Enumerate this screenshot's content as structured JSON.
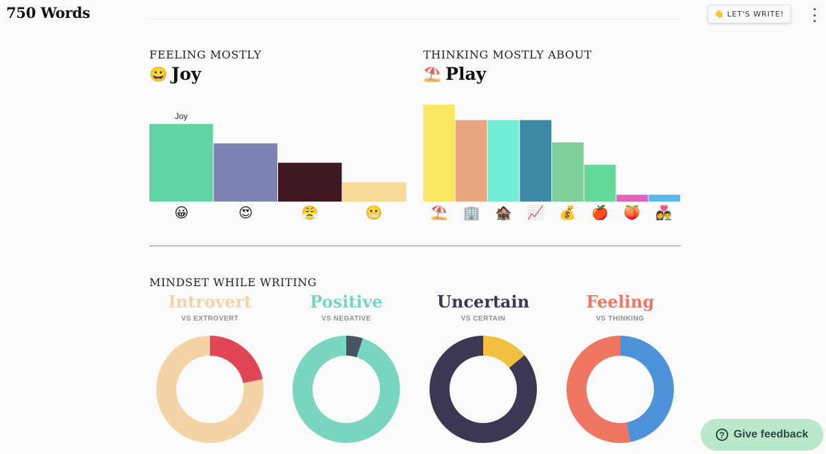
{
  "app": {
    "title": "750 Words"
  },
  "header": {
    "write_button": {
      "icon": "waving-hand-icon",
      "emoji": "👋",
      "label": "LET'S WRITE!"
    },
    "menu_icon": "kebab-menu-icon"
  },
  "feeling": {
    "label": "FEELING MOSTLY",
    "value": "Joy",
    "value_emoji": "😀"
  },
  "thinking": {
    "label": "THINKING MOSTLY ABOUT",
    "value": "Play",
    "value_emoji": "⛱️"
  },
  "chart_data": [
    {
      "type": "bar",
      "categories": [
        "😀",
        "😍",
        "😤",
        "😬"
      ],
      "values": [
        60,
        45,
        30,
        15
      ],
      "ylim": [
        0,
        75
      ],
      "colors": [
        "#62d3a4",
        "#7d84b2",
        "#3e1720",
        "#f8d996"
      ],
      "bar_labels": [
        "Joy",
        "",
        "",
        ""
      ],
      "grid": false
    },
    {
      "type": "bar",
      "categories": [
        "⛱️",
        "🏢",
        "🏚️",
        "📈",
        "💰",
        "🍎",
        "🍑",
        "👩‍❤️‍👨"
      ],
      "values": [
        100,
        84,
        84,
        84,
        61,
        38,
        7,
        7
      ],
      "ylim": [
        0,
        100
      ],
      "colors": [
        "#fae660",
        "#eaa581",
        "#72efd5",
        "#3d8aa6",
        "#7ecf9a",
        "#65d997",
        "#e062b9",
        "#5ab8f1"
      ],
      "grid": false
    },
    {
      "type": "pie",
      "categories": [
        "Introvert",
        "Extrovert"
      ],
      "values": [
        78,
        22
      ],
      "colors": [
        "#f4d4a7",
        "#e04654"
      ]
    },
    {
      "type": "pie",
      "categories": [
        "Positive",
        "Negative"
      ],
      "values": [
        95,
        5
      ],
      "colors": [
        "#7bd6c0",
        "#475461"
      ]
    },
    {
      "type": "pie",
      "categories": [
        "Uncertain",
        "Certain"
      ],
      "values": [
        86,
        14
      ],
      "colors": [
        "#3c3854",
        "#f2c040"
      ]
    },
    {
      "type": "pie",
      "categories": [
        "Feeling",
        "Thinking"
      ],
      "values": [
        53,
        47
      ],
      "colors": [
        "#ef7661",
        "#4e92da"
      ]
    }
  ],
  "mindset": {
    "label": "MINDSET WHILE WRITING",
    "items": [
      {
        "title": "Introvert",
        "sub": "VS EXTROVERT",
        "color": "#f4d4a7"
      },
      {
        "title": "Positive",
        "sub": "VS NEGATIVE",
        "color": "#7bd6c0"
      },
      {
        "title": "Uncertain",
        "sub": "VS CERTAIN",
        "color": "#3c3854"
      },
      {
        "title": "Feeling",
        "sub": "VS THINKING",
        "color": "#ef7661"
      }
    ]
  },
  "feedback": {
    "icon": "question-circle-icon",
    "glyph": "?",
    "label": "Give feedback"
  }
}
